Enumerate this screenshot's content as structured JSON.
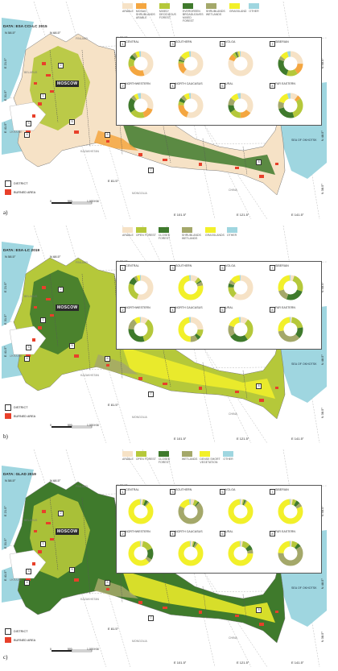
{
  "panels": [
    {
      "letter": "a)",
      "data_source": "DATA: ESA CCI-LC 2015",
      "legend": [
        {
          "label": "ARABLE",
          "color": "#f6e2c6"
        },
        {
          "label": "MOSAIC SHRUBLANDS ARABLE",
          "color": "#f4a640"
        },
        {
          "label": "MIXED DECIDUOUS FOREST",
          "color": "#b5c83a"
        },
        {
          "label": "EVERGREEN BROADLEAVES MIXED FOREST",
          "color": "#3f7a2c"
        },
        {
          "label": "SHRUBLANDS WETLANDS",
          "color": "#a4a86a"
        },
        {
          "label": "GRASSLAND",
          "color": "#f2f02a"
        },
        {
          "label": "OTHER",
          "color": "#9fd6e0"
        }
      ],
      "districts": [
        {
          "num": "1",
          "name": "CENTRAL",
          "shares": [
            0.45,
            0.25,
            0.12,
            0.05,
            0.05,
            0.05,
            0.03
          ]
        },
        {
          "num": "2",
          "name": "NORTHWESTERN",
          "shares": [
            0.3,
            0.15,
            0.2,
            0.2,
            0.05,
            0.05,
            0.05
          ]
        },
        {
          "num": "3",
          "name": "SOUTHERN",
          "shares": [
            0.6,
            0.15,
            0.03,
            0.02,
            0.05,
            0.12,
            0.03
          ]
        },
        {
          "num": "4",
          "name": "NORTH CAUCASUS",
          "shares": [
            0.55,
            0.2,
            0.05,
            0.05,
            0.05,
            0.07,
            0.03
          ]
        },
        {
          "num": "5",
          "name": "VOLGA",
          "shares": [
            0.8,
            0.08,
            0.04,
            0.02,
            0.02,
            0.02,
            0.02
          ]
        },
        {
          "num": "6",
          "name": "URAL",
          "shares": [
            0.35,
            0.15,
            0.15,
            0.1,
            0.1,
            0.1,
            0.05
          ]
        },
        {
          "num": "7",
          "name": "SIBERIAN",
          "shares": [
            0.25,
            0.15,
            0.15,
            0.25,
            0.05,
            0.1,
            0.05
          ]
        },
        {
          "num": "8",
          "name": "FAR EASTERN",
          "shares": [
            0.1,
            0.05,
            0.3,
            0.25,
            0.1,
            0.15,
            0.05
          ]
        }
      ],
      "coords": {
        "n1": "N 58.5°",
        "n2": "N 68.5°",
        "n3": "N 78.5°",
        "e1": "E 21.5°",
        "e2": "E 31.5°",
        "e3": "E 41.5°",
        "e4": "E 81.5°",
        "e5": "E 101.5°",
        "e6": "E 121.5°",
        "e7": "E 141.5°",
        "n_r1": "N 58.5°",
        "n_r2": "N 48.5°",
        "n_r3": "N 38.5°"
      },
      "moscow": "MOSCOW",
      "countries": [
        "FINLAND",
        "BELARUS",
        "UKRAINE",
        "KAZAKHSTAN",
        "MONGOLIA",
        "CHINA"
      ],
      "sea": "SEA OF OKHOTSK",
      "legend_district": "DISTRICT",
      "legend_burned": "BURNED AREA",
      "scale": {
        "zero": "0",
        "mid": "500",
        "end": "1,000 KM"
      }
    },
    {
      "letter": "b)",
      "data_source": "DATA: ESA-LC 2019",
      "legend": [
        {
          "label": "ARABLE",
          "color": "#f6e2c6"
        },
        {
          "label": "OPEN FOREST",
          "color": "#b5c83a"
        },
        {
          "label": "CLOSED FOREST",
          "color": "#3f7a2c"
        },
        {
          "label": "SHRUBLANDS WETLANDS",
          "color": "#a4a86a"
        },
        {
          "label": "GRASSLANDS",
          "color": "#f2f02a"
        },
        {
          "label": "OTHER",
          "color": "#9fd6e0"
        }
      ],
      "districts": [
        {
          "num": "1",
          "name": "CENTRAL",
          "shares": [
            0.55,
            0.25,
            0.1,
            0.04,
            0.04,
            0.02
          ]
        },
        {
          "num": "2",
          "name": "NORTHWESTERN",
          "shares": [
            0.1,
            0.35,
            0.3,
            0.15,
            0.08,
            0.02
          ]
        },
        {
          "num": "3",
          "name": "SOUTHERN",
          "shares": [
            0.1,
            0.05,
            0.02,
            0.05,
            0.75,
            0.03
          ]
        },
        {
          "num": "4",
          "name": "NORTH CAUCASUS",
          "shares": [
            0.25,
            0.1,
            0.05,
            0.1,
            0.47,
            0.03
          ]
        },
        {
          "num": "5",
          "name": "VOLGA",
          "shares": [
            0.6,
            0.15,
            0.05,
            0.05,
            0.13,
            0.02
          ]
        },
        {
          "num": "6",
          "name": "URAL",
          "shares": [
            0.1,
            0.3,
            0.25,
            0.15,
            0.17,
            0.03
          ]
        },
        {
          "num": "7",
          "name": "SIBERIAN",
          "shares": [
            0.05,
            0.25,
            0.25,
            0.15,
            0.28,
            0.02
          ]
        },
        {
          "num": "8",
          "name": "FAR EASTERN",
          "shares": [
            0.02,
            0.2,
            0.15,
            0.35,
            0.26,
            0.02
          ]
        }
      ],
      "coords": {
        "n1": "N 58.5°",
        "n2": "N 68.5°",
        "n3": "N 78.5°",
        "e1": "E 21.5°",
        "e2": "E 31.5°",
        "e3": "E 41.5°",
        "e4": "E 81.5°",
        "e5": "E 101.5°",
        "e6": "E 121.5°",
        "e7": "E 141.5°",
        "n_r1": "N 58.5°",
        "n_r2": "N 48.5°",
        "n_r3": "N 38.5°"
      },
      "moscow": "MOSCOW",
      "countries": [
        "FINLAND",
        "BELARUS",
        "UKRAINE",
        "KAZAKHSTAN",
        "MONGOLIA",
        "CHINA"
      ],
      "sea": "SEA OF OKHOTSK",
      "legend_district": "DISTRICT",
      "legend_burned": "BURNED AREA",
      "scale": {
        "zero": "0",
        "mid": "500",
        "end": "1,000 KM"
      }
    },
    {
      "letter": "c)",
      "data_source": "DATA: GLAD 2019",
      "legend": [
        {
          "label": "ARABLE",
          "color": "#f6e2c6"
        },
        {
          "label": "OPEN FOREST",
          "color": "#b5c83a"
        },
        {
          "label": "CLOSED FOREST",
          "color": "#3f7a2c"
        },
        {
          "label": "WETLANDS",
          "color": "#a4a86a"
        },
        {
          "label": "DENSE SHORT VEGETATION",
          "color": "#f2f02a"
        },
        {
          "label": "OTHER",
          "color": "#9fd6e0"
        }
      ],
      "districts": [
        {
          "num": "1",
          "name": "CENTRAL",
          "shares": [
            0.03,
            0.03,
            0.04,
            0.02,
            0.86,
            0.02
          ]
        },
        {
          "num": "2",
          "name": "NORTHWESTERN",
          "shares": [
            0.03,
            0.15,
            0.15,
            0.05,
            0.6,
            0.02
          ]
        },
        {
          "num": "3",
          "name": "SOUTHERN",
          "shares": [
            0.05,
            0.05,
            0.02,
            0.7,
            0.15,
            0.03
          ]
        },
        {
          "num": "4",
          "name": "NORTH CAUCASUS",
          "shares": [
            0.03,
            0.02,
            0.02,
            0.03,
            0.88,
            0.02
          ]
        },
        {
          "num": "5",
          "name": "VOLGA",
          "shares": [
            0.03,
            0.02,
            0.02,
            0.02,
            0.89,
            0.02
          ]
        },
        {
          "num": "6",
          "name": "URAL",
          "shares": [
            0.03,
            0.1,
            0.07,
            0.05,
            0.73,
            0.02
          ]
        },
        {
          "num": "7",
          "name": "SIBERIAN",
          "shares": [
            0.03,
            0.05,
            0.05,
            0.05,
            0.8,
            0.02
          ]
        },
        {
          "num": "8",
          "name": "FAR EASTERN",
          "shares": [
            0.02,
            0.08,
            0.05,
            0.6,
            0.23,
            0.02
          ]
        }
      ],
      "coords": {
        "n1": "N 58.5°",
        "n2": "N 68.5°",
        "n3": "N 78.5°",
        "e1": "E 21.5°",
        "e2": "E 31.5°",
        "e3": "E 41.5°",
        "e4": "E 81.5°",
        "e5": "E 101.5°",
        "e6": "E 121.5°",
        "e7": "E 141.5°",
        "n_r1": "N 58.5°",
        "n_r2": "N 48.5°",
        "n_r3": "N 38.5°"
      },
      "moscow": "MOSCOW",
      "countries": [
        "FINLAND",
        "BELARUS",
        "UKRAINE",
        "KAZAKHSTAN",
        "MONGOLIA",
        "CHINA"
      ],
      "sea": "SEA OF OKHOTSK",
      "legend_district": "DISTRICT",
      "legend_burned": "BURNED AREA",
      "scale": {
        "zero": "0",
        "mid": "500",
        "end": "1,000 KM"
      }
    }
  ]
}
